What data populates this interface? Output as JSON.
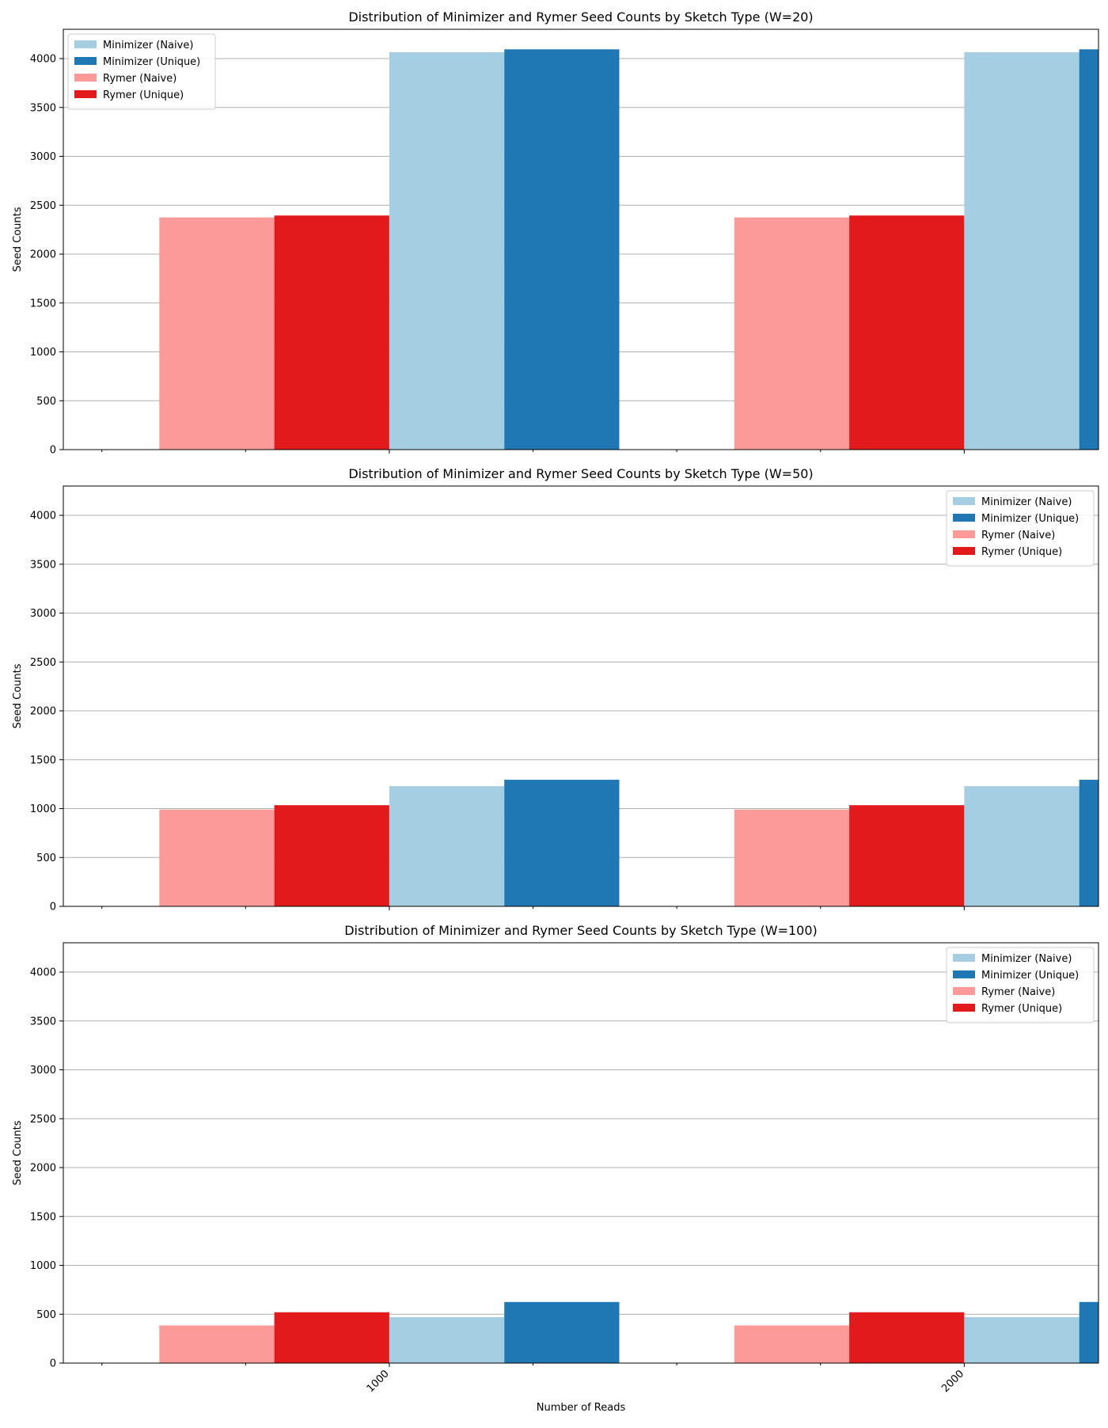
{
  "figure": {
    "xlabel": "Number of Reads"
  },
  "chart_data": [
    {
      "type": "bar",
      "title": "Distribution of Minimizer and Rymer Seed Counts by Sketch Type (W=20)",
      "xlabel": "",
      "ylabel": "Seed Counts",
      "categories": [
        "1000",
        "2000"
      ],
      "ylim": [
        0,
        4300
      ],
      "yticks": [
        0,
        500,
        1000,
        1500,
        2000,
        2500,
        3000,
        3500,
        4000
      ],
      "grid": true,
      "legend_position": "upper-left",
      "series": [
        {
          "name": "Minimizer (Naive)",
          "color": "#a6cee3",
          "values": [
            4065,
            4065
          ]
        },
        {
          "name": "Minimizer (Unique)",
          "color": "#1f78b4",
          "values": [
            4095,
            4095
          ]
        },
        {
          "name": "Rymer (Naive)",
          "color": "#fb9a99",
          "values": [
            2375,
            2375
          ]
        },
        {
          "name": "Rymer (Unique)",
          "color": "#e31a1c",
          "values": [
            2395,
            2395
          ]
        }
      ]
    },
    {
      "type": "bar",
      "title": "Distribution of Minimizer and Rymer Seed Counts by Sketch Type (W=50)",
      "xlabel": "",
      "ylabel": "Seed Counts",
      "categories": [
        "1000",
        "2000"
      ],
      "ylim": [
        0,
        4300
      ],
      "yticks": [
        0,
        500,
        1000,
        1500,
        2000,
        2500,
        3000,
        3500,
        4000
      ],
      "grid": true,
      "legend_position": "upper-right",
      "series": [
        {
          "name": "Minimizer (Naive)",
          "color": "#a6cee3",
          "values": [
            1230,
            1230
          ]
        },
        {
          "name": "Minimizer (Unique)",
          "color": "#1f78b4",
          "values": [
            1295,
            1295
          ]
        },
        {
          "name": "Rymer (Naive)",
          "color": "#fb9a99",
          "values": [
            990,
            990
          ]
        },
        {
          "name": "Rymer (Unique)",
          "color": "#e31a1c",
          "values": [
            1035,
            1035
          ]
        }
      ]
    },
    {
      "type": "bar",
      "title": "Distribution of Minimizer and Rymer Seed Counts by Sketch Type (W=100)",
      "xlabel": "Number of Reads",
      "ylabel": "Seed Counts",
      "categories": [
        "1000",
        "2000"
      ],
      "ylim": [
        0,
        4300
      ],
      "yticks": [
        0,
        500,
        1000,
        1500,
        2000,
        2500,
        3000,
        3500,
        4000
      ],
      "grid": true,
      "legend_position": "upper-right",
      "series": [
        {
          "name": "Minimizer (Naive)",
          "color": "#a6cee3",
          "values": [
            470,
            470
          ]
        },
        {
          "name": "Minimizer (Unique)",
          "color": "#1f78b4",
          "values": [
            625,
            625
          ]
        },
        {
          "name": "Rymer (Naive)",
          "color": "#fb9a99",
          "values": [
            385,
            385
          ]
        },
        {
          "name": "Rymer (Unique)",
          "color": "#e31a1c",
          "values": [
            520,
            520
          ]
        }
      ]
    }
  ]
}
